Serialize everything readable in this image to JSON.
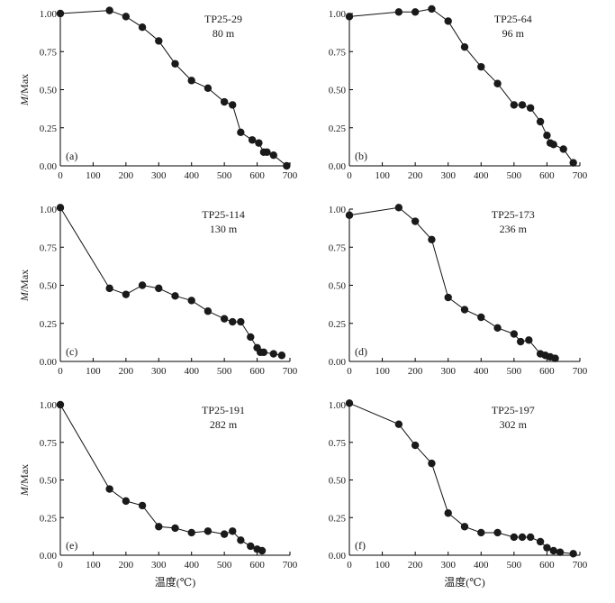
{
  "figure": {
    "ylabel": "M/Max",
    "xlabel": "温度(℃)"
  },
  "chart_data": [
    {
      "type": "line",
      "title": "TP25-29",
      "subtitle": "80 m",
      "panel_label": "(a)",
      "xlim": [
        0,
        700
      ],
      "ylim": [
        0,
        1
      ],
      "x_ticks": [
        0,
        100,
        200,
        300,
        400,
        500,
        600,
        700
      ],
      "y_ticks": [
        0,
        0.25,
        0.5,
        0.75,
        1
      ],
      "x_tick_labels": [
        "0",
        "100",
        "200",
        "300",
        "400",
        "500",
        "600",
        "700"
      ],
      "y_tick_labels": [
        "0.00",
        "0.25",
        "0.50",
        "0.75",
        "1.00"
      ],
      "show_y_title": true,
      "show_x_title": false,
      "series": [
        {
          "x": [
            0,
            150,
            200,
            250,
            300,
            350,
            400,
            450,
            500,
            525,
            550,
            585,
            605,
            620,
            630,
            650,
            690
          ],
          "y": [
            1.0,
            1.02,
            0.98,
            0.91,
            0.82,
            0.67,
            0.56,
            0.51,
            0.42,
            0.4,
            0.22,
            0.17,
            0.15,
            0.09,
            0.09,
            0.07,
            0.0
          ]
        }
      ]
    },
    {
      "type": "line",
      "title": "TP25-64",
      "subtitle": "96 m",
      "panel_label": "(b)",
      "xlim": [
        0,
        700
      ],
      "ylim": [
        0,
        1
      ],
      "x_ticks": [
        0,
        100,
        200,
        300,
        400,
        500,
        600,
        700
      ],
      "y_ticks": [
        0,
        0.25,
        0.5,
        0.75,
        1
      ],
      "x_tick_labels": [
        "0",
        "100",
        "200",
        "300",
        "400",
        "500",
        "600",
        "700"
      ],
      "y_tick_labels": [
        "0.00",
        "0.25",
        "0.50",
        "0.75",
        "1.00"
      ],
      "show_y_title": false,
      "show_x_title": false,
      "series": [
        {
          "x": [
            0,
            150,
            200,
            250,
            300,
            350,
            400,
            450,
            500,
            525,
            550,
            580,
            600,
            610,
            620,
            650,
            680
          ],
          "y": [
            0.98,
            1.01,
            1.01,
            1.03,
            0.95,
            0.78,
            0.65,
            0.54,
            0.4,
            0.4,
            0.38,
            0.29,
            0.2,
            0.15,
            0.14,
            0.11,
            0.02
          ]
        }
      ]
    },
    {
      "type": "line",
      "title": "TP25-114",
      "subtitle": "130 m",
      "panel_label": "(c)",
      "xlim": [
        0,
        700
      ],
      "ylim": [
        0,
        1
      ],
      "x_ticks": [
        0,
        100,
        200,
        300,
        400,
        500,
        600,
        700
      ],
      "y_ticks": [
        0,
        0.25,
        0.5,
        0.75,
        1
      ],
      "x_tick_labels": [
        "0",
        "100",
        "200",
        "300",
        "400",
        "500",
        "600",
        "700"
      ],
      "y_tick_labels": [
        "0.00",
        "0.25",
        "0.50",
        "0.75",
        "1.00"
      ],
      "show_y_title": true,
      "show_x_title": false,
      "series": [
        {
          "x": [
            0,
            150,
            200,
            250,
            300,
            350,
            400,
            450,
            500,
            525,
            550,
            580,
            600,
            610,
            620,
            650,
            675
          ],
          "y": [
            1.01,
            0.48,
            0.44,
            0.5,
            0.48,
            0.43,
            0.4,
            0.33,
            0.28,
            0.26,
            0.26,
            0.16,
            0.09,
            0.06,
            0.06,
            0.05,
            0.04
          ]
        }
      ]
    },
    {
      "type": "line",
      "title": "TP25-173",
      "subtitle": "236 m",
      "panel_label": "(d)",
      "xlim": [
        0,
        700
      ],
      "ylim": [
        0,
        1
      ],
      "x_ticks": [
        0,
        100,
        200,
        300,
        400,
        500,
        600,
        700
      ],
      "y_ticks": [
        0,
        0.25,
        0.5,
        0.75,
        1
      ],
      "x_tick_labels": [
        "0",
        "100",
        "200",
        "300",
        "400",
        "500",
        "600",
        "700"
      ],
      "y_tick_labels": [
        "0.00",
        "0.25",
        "0.50",
        "0.75",
        "1.00"
      ],
      "show_y_title": false,
      "show_x_title": false,
      "series": [
        {
          "x": [
            0,
            150,
            200,
            250,
            300,
            350,
            400,
            450,
            500,
            520,
            545,
            580,
            595,
            610,
            625
          ],
          "y": [
            0.96,
            1.01,
            0.92,
            0.8,
            0.42,
            0.34,
            0.29,
            0.22,
            0.18,
            0.13,
            0.14,
            0.05,
            0.04,
            0.03,
            0.02
          ]
        }
      ]
    },
    {
      "type": "line",
      "title": "TP25-191",
      "subtitle": "282 m",
      "panel_label": "(e)",
      "xlim": [
        0,
        700
      ],
      "ylim": [
        0,
        1
      ],
      "x_ticks": [
        0,
        100,
        200,
        300,
        400,
        500,
        600,
        700
      ],
      "y_ticks": [
        0,
        0.25,
        0.5,
        0.75,
        1
      ],
      "x_tick_labels": [
        "0",
        "100",
        "200",
        "300",
        "400",
        "500",
        "600",
        "700"
      ],
      "y_tick_labels": [
        "0.00",
        "0.25",
        "0.50",
        "0.75",
        "1.00"
      ],
      "show_y_title": true,
      "show_x_title": true,
      "series": [
        {
          "x": [
            0,
            150,
            200,
            250,
            300,
            350,
            400,
            450,
            500,
            525,
            550,
            580,
            600,
            615
          ],
          "y": [
            1.0,
            0.44,
            0.36,
            0.33,
            0.19,
            0.18,
            0.15,
            0.16,
            0.14,
            0.16,
            0.1,
            0.06,
            0.04,
            0.03
          ]
        }
      ]
    },
    {
      "type": "line",
      "title": "TP25-197",
      "subtitle": "302 m",
      "panel_label": "(f)",
      "xlim": [
        0,
        700
      ],
      "ylim": [
        0,
        1
      ],
      "x_ticks": [
        0,
        100,
        200,
        300,
        400,
        500,
        600,
        700
      ],
      "y_ticks": [
        0,
        0.25,
        0.5,
        0.75,
        1
      ],
      "x_tick_labels": [
        "0",
        "100",
        "200",
        "300",
        "400",
        "500",
        "600",
        "700"
      ],
      "y_tick_labels": [
        "0.00",
        "0.25",
        "0.50",
        "0.75",
        "1.00"
      ],
      "show_y_title": false,
      "show_x_title": true,
      "series": [
        {
          "x": [
            0,
            150,
            200,
            250,
            300,
            350,
            400,
            450,
            500,
            525,
            550,
            580,
            600,
            620,
            640,
            680
          ],
          "y": [
            1.01,
            0.87,
            0.73,
            0.61,
            0.28,
            0.19,
            0.15,
            0.15,
            0.12,
            0.12,
            0.12,
            0.09,
            0.05,
            0.03,
            0.02,
            0.01
          ]
        }
      ]
    }
  ]
}
